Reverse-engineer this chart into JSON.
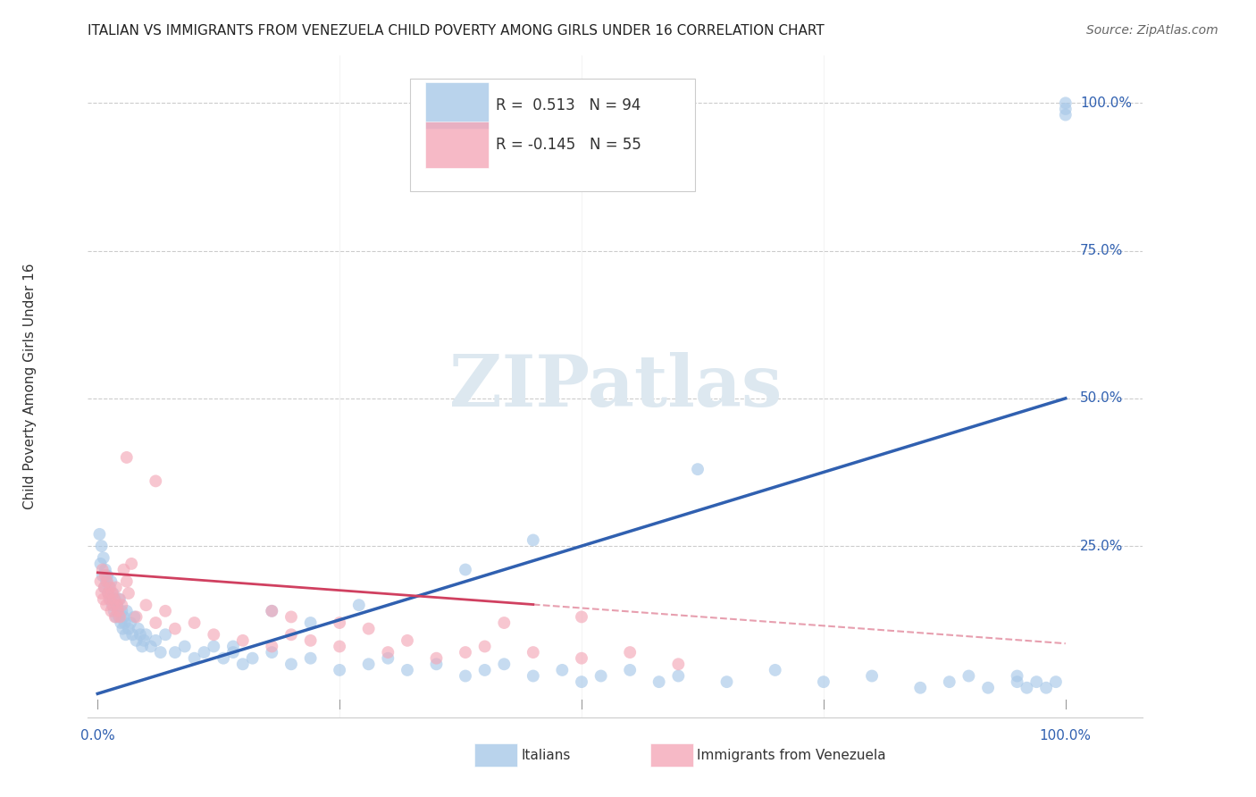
{
  "title": "ITALIAN VS IMMIGRANTS FROM VENEZUELA CHILD POVERTY AMONG GIRLS UNDER 16 CORRELATION CHART",
  "source": "Source: ZipAtlas.com",
  "ylabel": "Child Poverty Among Girls Under 16",
  "legend_blue_r": "0.513",
  "legend_blue_n": "94",
  "legend_pink_r": "-0.145",
  "legend_pink_n": "55",
  "blue_color": "#a8c8e8",
  "pink_color": "#f4a8b8",
  "blue_line_color": "#3060b0",
  "pink_line_color": "#d04060",
  "watermark_color": "#dde8f0",
  "blue_x": [
    0.002,
    0.003,
    0.004,
    0.005,
    0.006,
    0.007,
    0.008,
    0.009,
    0.01,
    0.011,
    0.012,
    0.013,
    0.014,
    0.015,
    0.016,
    0.017,
    0.018,
    0.019,
    0.02,
    0.021,
    0.022,
    0.023,
    0.024,
    0.025,
    0.026,
    0.027,
    0.028,
    0.029,
    0.03,
    0.032,
    0.034,
    0.036,
    0.038,
    0.04,
    0.042,
    0.044,
    0.046,
    0.048,
    0.05,
    0.055,
    0.06,
    0.065,
    0.07,
    0.08,
    0.09,
    0.1,
    0.11,
    0.12,
    0.13,
    0.14,
    0.15,
    0.16,
    0.18,
    0.2,
    0.22,
    0.25,
    0.28,
    0.3,
    0.32,
    0.35,
    0.38,
    0.4,
    0.42,
    0.45,
    0.48,
    0.5,
    0.52,
    0.55,
    0.58,
    0.6,
    0.65,
    0.7,
    0.75,
    0.8,
    0.85,
    0.88,
    0.9,
    0.92,
    0.95,
    0.95,
    0.96,
    0.97,
    0.98,
    0.99,
    1.0,
    1.0,
    1.0,
    0.62,
    0.45,
    0.38,
    0.27,
    0.22,
    0.18,
    0.14
  ],
  "blue_y": [
    0.27,
    0.22,
    0.25,
    0.2,
    0.23,
    0.18,
    0.21,
    0.19,
    0.2,
    0.17,
    0.18,
    0.16,
    0.19,
    0.15,
    0.17,
    0.14,
    0.16,
    0.13,
    0.15,
    0.14,
    0.13,
    0.16,
    0.12,
    0.14,
    0.11,
    0.13,
    0.12,
    0.1,
    0.14,
    0.11,
    0.12,
    0.1,
    0.13,
    0.09,
    0.11,
    0.1,
    0.08,
    0.09,
    0.1,
    0.08,
    0.09,
    0.07,
    0.1,
    0.07,
    0.08,
    0.06,
    0.07,
    0.08,
    0.06,
    0.07,
    0.05,
    0.06,
    0.07,
    0.05,
    0.06,
    0.04,
    0.05,
    0.06,
    0.04,
    0.05,
    0.03,
    0.04,
    0.05,
    0.03,
    0.04,
    0.02,
    0.03,
    0.04,
    0.02,
    0.03,
    0.02,
    0.04,
    0.02,
    0.03,
    0.01,
    0.02,
    0.03,
    0.01,
    0.02,
    0.03,
    0.01,
    0.02,
    0.01,
    0.02,
    0.98,
    1.0,
    0.99,
    0.38,
    0.26,
    0.21,
    0.15,
    0.12,
    0.14,
    0.08
  ],
  "pink_x": [
    0.003,
    0.004,
    0.005,
    0.006,
    0.007,
    0.008,
    0.009,
    0.01,
    0.011,
    0.012,
    0.013,
    0.014,
    0.015,
    0.016,
    0.017,
    0.018,
    0.019,
    0.02,
    0.021,
    0.022,
    0.023,
    0.025,
    0.027,
    0.03,
    0.032,
    0.035,
    0.04,
    0.05,
    0.06,
    0.07,
    0.08,
    0.1,
    0.12,
    0.15,
    0.18,
    0.2,
    0.22,
    0.25,
    0.3,
    0.35,
    0.4,
    0.45,
    0.5,
    0.55,
    0.6,
    0.03,
    0.06,
    0.18,
    0.2,
    0.25,
    0.28,
    0.32,
    0.38,
    0.42,
    0.5
  ],
  "pink_y": [
    0.19,
    0.17,
    0.21,
    0.16,
    0.18,
    0.2,
    0.15,
    0.19,
    0.17,
    0.16,
    0.18,
    0.14,
    0.17,
    0.15,
    0.16,
    0.13,
    0.18,
    0.15,
    0.14,
    0.16,
    0.13,
    0.15,
    0.21,
    0.19,
    0.17,
    0.22,
    0.13,
    0.15,
    0.12,
    0.14,
    0.11,
    0.12,
    0.1,
    0.09,
    0.08,
    0.1,
    0.09,
    0.08,
    0.07,
    0.06,
    0.08,
    0.07,
    0.06,
    0.07,
    0.05,
    0.4,
    0.36,
    0.14,
    0.13,
    0.12,
    0.11,
    0.09,
    0.07,
    0.12,
    0.13
  ]
}
